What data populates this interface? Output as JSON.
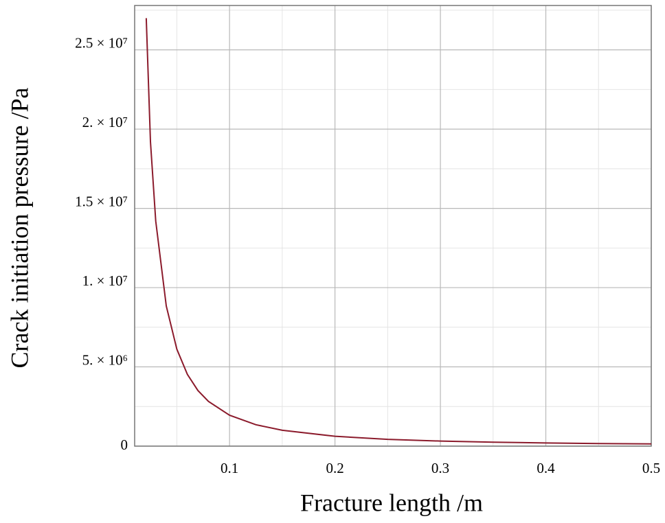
{
  "chart_data": {
    "type": "line",
    "xlabel": "Fracture length /m",
    "ylabel": "Crack initiation pressure /Pa",
    "x": [
      0.021,
      0.025,
      0.03,
      0.04,
      0.05,
      0.06,
      0.07,
      0.08,
      0.1,
      0.125,
      0.15,
      0.2,
      0.25,
      0.3,
      0.35,
      0.4,
      0.45,
      0.5
    ],
    "values": [
      27000000,
      19200000,
      14200000,
      8840000,
      6120000,
      4530000,
      3510000,
      2820000,
      1950000,
      1350000,
      1000000,
      620000,
      430000,
      320000,
      250000,
      200000,
      160000,
      140000
    ],
    "color": "#8b1a2b",
    "xlim": [
      0.01,
      0.5
    ],
    "ylim": [
      0,
      27800000
    ],
    "xticks": [
      0.1,
      0.2,
      0.3,
      0.4,
      0.5
    ],
    "yticks": [
      0,
      {
        "value": 5000000,
        "label": "5. × 10⁶"
      },
      {
        "value": 10000000,
        "label": "1. × 10⁷"
      },
      {
        "value": 15000000,
        "label": "1.5 × 10⁷"
      },
      {
        "value": 20000000,
        "label": "2. × 10⁷"
      },
      {
        "value": 25000000,
        "label": "2.5 × 10⁷"
      }
    ],
    "minor_xticks": [
      0.05,
      0.15,
      0.25,
      0.35,
      0.45
    ],
    "minor_yticks": [
      2500000,
      7500000,
      12500000,
      17500000,
      22500000,
      27500000
    ],
    "grid": true
  }
}
